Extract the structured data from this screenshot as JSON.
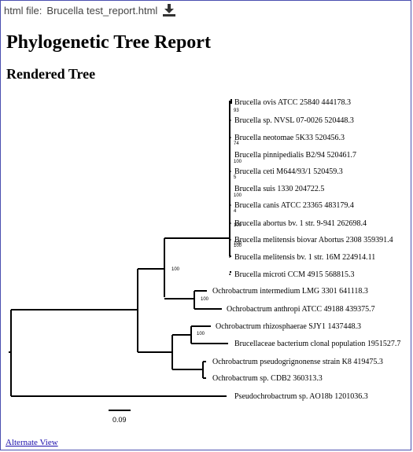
{
  "file_bar": {
    "label": "html file:",
    "filename": "Brucella test_report.html",
    "download_icon": "download-icon"
  },
  "report": {
    "title": "Phylogenetic Tree Report",
    "subtitle": "Rendered Tree"
  },
  "tree": {
    "leaves": [
      "Brucella ovis ATCC 25840 444178.3",
      "Brucella sp. NVSL 07-0026 520448.3",
      "Brucella neotomae 5K33 520456.3",
      "Brucella pinnipedialis B2/94 520461.7",
      "Brucella ceti M644/93/1 520459.3",
      "Brucella suis 1330 204722.5",
      "Brucella canis ATCC 23365 483179.4",
      "Brucella abortus bv. 1 str. 9-941 262698.4",
      "Brucella melitensis biovar Abortus 2308 359391.4",
      "Brucella melitensis bv. 1 str. 16M 224914.11",
      "Brucella microti CCM 4915 568815.3",
      "Ochrobactrum intermedium LMG 3301 641118.3",
      "Ochrobactrum anthropi ATCC 49188 439375.7",
      "Ochrobactrum rhizosphaerae SJY1 1437448.3",
      "Brucellaceae bacterium clonal population 1951527.7",
      "Ochrobactrum pseudogrignonense strain K8 419475.3",
      "Ochrobactrum sp. CDB2 360313.3",
      "Pseudochrobactrum sp. AO18b 1201036.3"
    ],
    "bootstrap": [
      "93",
      "74",
      "100",
      "5",
      "100",
      "4",
      "100",
      "100",
      "100",
      "100",
      "100",
      "100"
    ],
    "scale_label": "0.09"
  },
  "links": {
    "alternate_view": "Alternate View"
  }
}
